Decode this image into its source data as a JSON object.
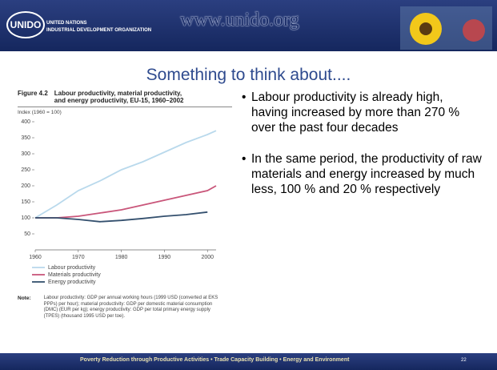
{
  "header": {
    "logo": "UNIDO",
    "org_line1": "UNITED NATIONS",
    "org_line2": "INDUSTRIAL DEVELOPMENT ORGANIZATION",
    "url": "www.unido.org"
  },
  "slide_title": "Something to think about....",
  "figure": {
    "number": "Figure 4.2",
    "caption": "Labour productivity, material productivity, and energy productivity, EU-15, 1960–2002",
    "note_label": "Note:",
    "note": "Labour productivity: GDP per annual working hours (1999 USD (converted at EKS PPPs) per hour); material productivity: GDP per domestic material consumption (DMC) (EUR per kg); energy productivity: GDP per total primary energy supply (TPES) (thousand 1995 USD per toe)."
  },
  "chart_data": {
    "type": "line",
    "y_label": "Index (1960 = 100)",
    "x": [
      1960,
      1965,
      1970,
      1975,
      1980,
      1985,
      1990,
      1995,
      2000,
      2002
    ],
    "series": [
      {
        "name": "Labour productivity",
        "color": "#b9d9ec",
        "values": [
          100,
          140,
          185,
          215,
          250,
          275,
          305,
          335,
          360,
          372
        ]
      },
      {
        "name": "Materials productivity",
        "color": "#c9567a",
        "values": [
          100,
          100,
          105,
          115,
          125,
          140,
          155,
          170,
          185,
          200
        ]
      },
      {
        "name": "Energy productivity",
        "color": "#34506e",
        "values": [
          100,
          100,
          95,
          88,
          92,
          98,
          105,
          110,
          118,
          null
        ]
      }
    ],
    "xlim": [
      1960,
      2002
    ],
    "xticks": [
      1960,
      1970,
      1980,
      1990,
      2000
    ],
    "ylim": [
      0,
      410
    ],
    "yticks": [
      50,
      100,
      150,
      200,
      250,
      300,
      350,
      400
    ]
  },
  "bullets": [
    "Labour productivity is already high, having increased by more than 270 % over the past four decades",
    "In the same period, the productivity of raw materials and energy increased by much less, 100 % and 20 % respectively"
  ],
  "footer": {
    "text": "Poverty Reduction through Productive Activities  •  Trade Capacity Building  •  Energy and Environment",
    "page": "22"
  }
}
